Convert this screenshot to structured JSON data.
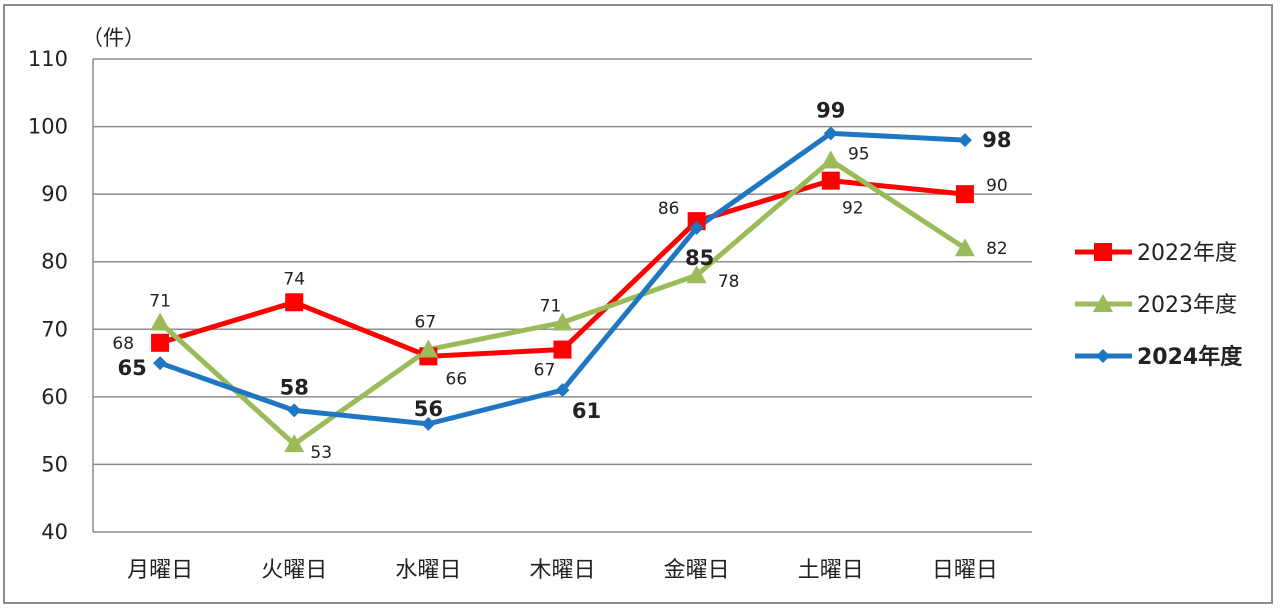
{
  "chart_data": {
    "type": "line",
    "unit_label": "（件）",
    "categories": [
      "月曜日",
      "火曜日",
      "水曜日",
      "木曜日",
      "金曜日",
      "土曜日",
      "日曜日"
    ],
    "ylim": [
      40,
      110
    ],
    "yticks": [
      "40",
      "50",
      "60",
      "70",
      "80",
      "90",
      "100",
      "110"
    ],
    "grid": true,
    "legend_position": "right",
    "series": [
      {
        "name": "2022年度",
        "values": [
          68,
          74,
          66,
          67,
          86,
          92,
          90
        ],
        "color": "#ff0000",
        "marker": "square",
        "bold": false
      },
      {
        "name": "2023年度",
        "values": [
          71,
          53,
          67,
          71,
          78,
          95,
          82
        ],
        "color": "#9bbb59",
        "marker": "triangle",
        "bold": false
      },
      {
        "name": "2024年度",
        "values": [
          65,
          58,
          56,
          61,
          85,
          99,
          98
        ],
        "color": "#1f77c4",
        "marker": "diamond",
        "bold": true
      }
    ]
  }
}
